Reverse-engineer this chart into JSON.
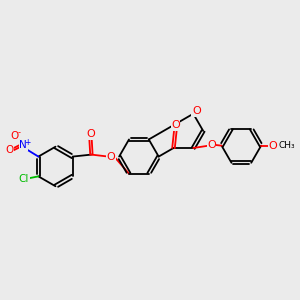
{
  "bg_color": "#ebebeb",
  "bond_color": "#000000",
  "atom_colors": {
    "O": "#ff0000",
    "N": "#0000ff",
    "Cl": "#00bb00",
    "C": "#000000"
  },
  "lw": 1.3,
  "fs": 7.0
}
